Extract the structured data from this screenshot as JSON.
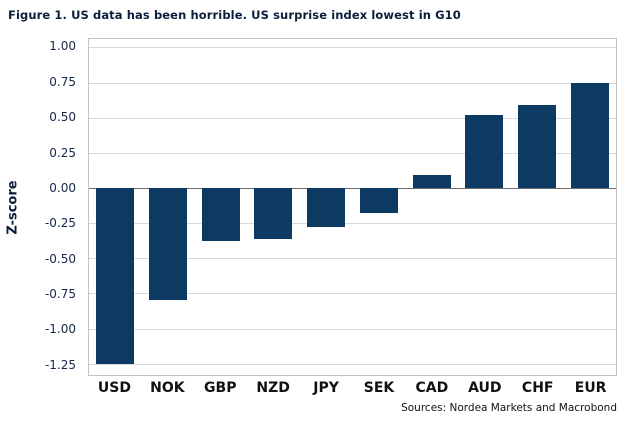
{
  "figure": {
    "title": "Figure 1. US data has been horrible. US surprise index lowest in G10",
    "source": "Sources: Nordea Markets and Macrobond"
  },
  "chart_data": {
    "type": "bar",
    "title": "Figure 1. US data has been horrible. US surprise index lowest in G10",
    "categories": [
      "USD",
      "NOK",
      "GBP",
      "NZD",
      "JPY",
      "SEK",
      "CAD",
      "AUD",
      "CHF",
      "EUR"
    ],
    "values": [
      -1.25,
      -0.8,
      -0.38,
      -0.36,
      -0.28,
      -0.18,
      0.09,
      0.52,
      0.59,
      0.75
    ],
    "xlabel": "",
    "ylabel": "Z-score",
    "ylim": [
      -1.25,
      1.0
    ],
    "ytick_labels": [
      "1.00",
      "0.75",
      "0.50",
      "0.25",
      "0.00",
      "-0.25",
      "-0.50",
      "-0.75",
      "-1.00",
      "-1.25"
    ],
    "grid": "horizontal",
    "legend": "none",
    "bar_color": "#0d3a62",
    "source": "Sources: Nordea Markets and Macrobond"
  },
  "colors": {
    "bar": "#0d3a62",
    "gridline": "#d9d9d9",
    "zero_line": "#6b6b6b",
    "plot_border": "#c3c3c3",
    "title_text": "#0a1f3c",
    "tick_text": "#14284a",
    "x_label_text": "#111111"
  }
}
